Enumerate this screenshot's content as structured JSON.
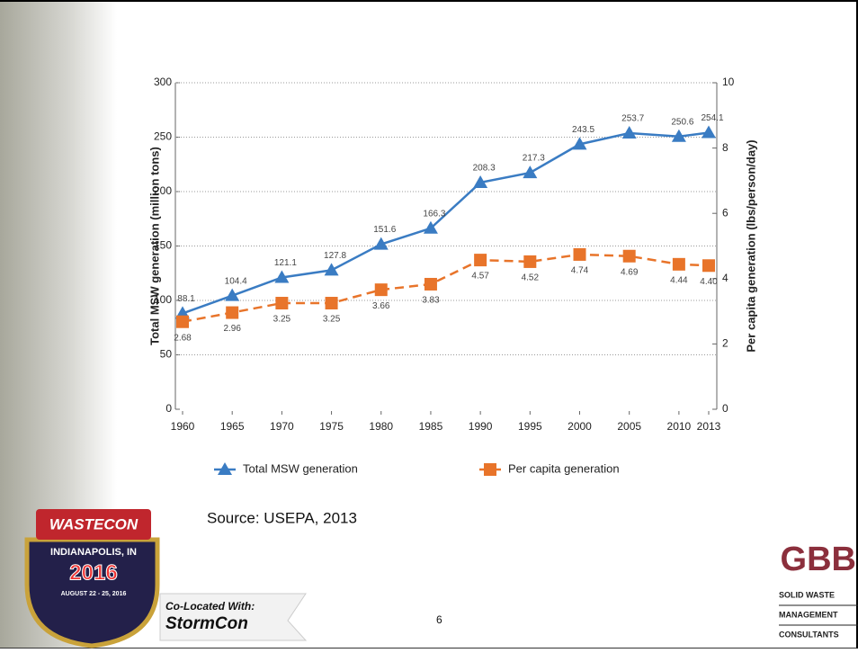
{
  "chart_data": {
    "type": "line",
    "x": [
      1960,
      1965,
      1970,
      1975,
      1980,
      1985,
      1990,
      1995,
      2000,
      2005,
      2010,
      2013
    ],
    "xlim": [
      1960,
      2013
    ],
    "xticks": [
      1960,
      1965,
      1970,
      1975,
      1980,
      1985,
      1990,
      1995,
      2000,
      2005,
      2010,
      2013
    ],
    "ylim": [
      0,
      300
    ],
    "yticks": [
      0,
      50,
      100,
      150,
      200,
      250,
      300
    ],
    "y2lim": [
      0,
      10
    ],
    "y2ticks": [
      0,
      2,
      4,
      6,
      8,
      10
    ],
    "ylabel": "Total MSW generation (million tons)",
    "y2label": "Per capita generation (lbs/person/day)",
    "grid": true,
    "series": [
      {
        "name": "Total MSW generation",
        "color": "#3a7cc3",
        "marker": "triangle",
        "values": [
          88.1,
          104.4,
          121.1,
          127.8,
          151.6,
          166.3,
          208.3,
          217.3,
          243.5,
          253.7,
          250.6,
          254.1
        ]
      },
      {
        "name": "Per capita generation",
        "color": "#e8742a",
        "marker": "square",
        "axis": "y2",
        "dashed": true,
        "values": [
          2.68,
          2.96,
          3.25,
          3.25,
          3.66,
          3.83,
          4.57,
          4.52,
          4.74,
          4.69,
          4.44,
          4.4
        ],
        "value_labels": [
          "2.68",
          "2.96",
          "3.25",
          "3.25",
          "3.66",
          "3.83",
          "4.57",
          "4.52",
          "4.74",
          "4.69",
          "4.44",
          "4.40"
        ]
      }
    ]
  },
  "slide": {
    "source": "Source:  USEPA, 2013",
    "page_number": "6",
    "event_logo": {
      "brand": "WASTECON",
      "place": "INDIANAPOLIS, IN",
      "year": "2016",
      "dates": "AUGUST 22 - 25, 2016"
    },
    "colocated": {
      "label": "Co-Located With:",
      "name": "StormCon"
    },
    "company_logo": {
      "mark": "GBB",
      "lines": [
        "SOLID WASTE",
        "MANAGEMENT",
        "CONSULTANTS"
      ]
    }
  }
}
